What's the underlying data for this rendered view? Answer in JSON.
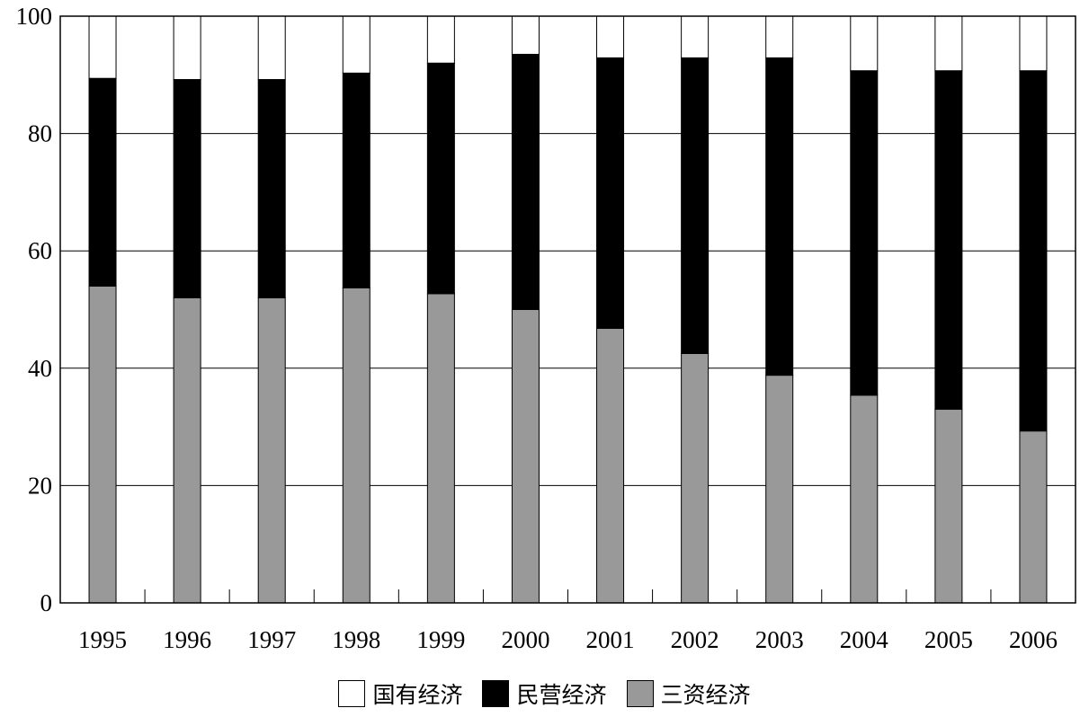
{
  "chart_data": {
    "type": "bar",
    "stacked": true,
    "categories": [
      "1995",
      "1996",
      "1997",
      "1998",
      "1999",
      "2000",
      "2001",
      "2002",
      "2003",
      "2004",
      "2005",
      "2006"
    ],
    "series": [
      {
        "name": "三资经济",
        "color": "#999999",
        "values": [
          54,
          52,
          52,
          53.7,
          52.7,
          50,
          46.8,
          42.5,
          38.8,
          35.4,
          33,
          29.3
        ]
      },
      {
        "name": "民营经济",
        "color": "#000000",
        "values": [
          35.4,
          37.2,
          37.2,
          36.6,
          39.3,
          43.5,
          46.1,
          50.4,
          54.1,
          55.3,
          57.7,
          61.4
        ]
      },
      {
        "name": "国有经济",
        "color": "#ffffff",
        "values": [
          10.6,
          10.8,
          10.8,
          9.7,
          8.0,
          6.5,
          7.1,
          7.1,
          7.1,
          9.3,
          9.3,
          9.3
        ]
      }
    ],
    "ylim": [
      0,
      100
    ],
    "yticks": [
      "0",
      "20",
      "40",
      "60",
      "80",
      "100"
    ],
    "grid": true,
    "legend_order": [
      "国有经济",
      "民营经济",
      "三资经济"
    ],
    "legend_position": "bottom-center",
    "title": "",
    "xlabel": "",
    "ylabel": ""
  }
}
